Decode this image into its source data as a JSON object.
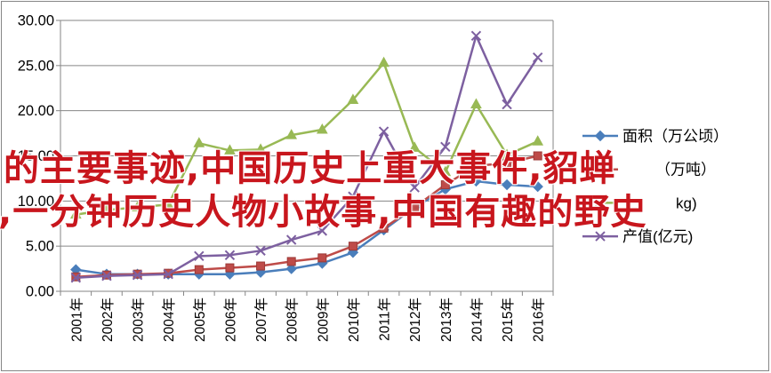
{
  "chart_data": {
    "type": "line",
    "categories": [
      "2001年",
      "2002年",
      "2003年",
      "2004年",
      "2005年",
      "2006年",
      "2007年",
      "2008年",
      "2009年",
      "2010年",
      "2011年",
      "2012年",
      "2013年",
      "2014年",
      "2015年",
      "2016年"
    ],
    "ylim": [
      0,
      30
    ],
    "y_tick_labels": [
      "0.00",
      "5.00",
      "10.00",
      "15.00",
      "20.00",
      "25.00",
      "30.00"
    ],
    "grid": true,
    "legend_position": "right",
    "series": [
      {
        "name": "面积（万公顷）",
        "color": "#4a7ebb",
        "marker": "diamond",
        "values": [
          2.4,
          1.9,
          1.9,
          1.9,
          1.9,
          1.9,
          2.1,
          2.5,
          3.1,
          4.3,
          6.8,
          9.3,
          11.3,
          12.2,
          11.8,
          11.6
        ]
      },
      {
        "name": "（万吨）",
        "color": "#be4b48",
        "marker": "square",
        "values": [
          1.6,
          1.8,
          1.9,
          2.0,
          2.4,
          2.6,
          2.8,
          3.3,
          3.7,
          5.0,
          7.0,
          9.3,
          11.8,
          13.9,
          14.2,
          15.0
        ]
      },
      {
        "name": "kg)",
        "color": "#98b954",
        "marker": "triangle",
        "values": [
          8.5,
          9.0,
          9.3,
          9.6,
          16.4,
          15.6,
          15.7,
          17.3,
          17.9,
          21.2,
          25.3,
          15.9,
          13.2,
          20.7,
          15.1,
          16.6
        ]
      },
      {
        "name": "产值(亿元)",
        "color": "#7d60a0",
        "marker": "x",
        "values": [
          1.5,
          1.7,
          1.8,
          1.9,
          3.9,
          4.0,
          4.5,
          5.7,
          6.7,
          10.5,
          17.7,
          11.5,
          16.0,
          28.3,
          20.7,
          25.9
        ]
      }
    ]
  },
  "overlay_text": {
    "line1": "的主要事迹,中国历史上重大事件,貂蝉",
    "line2": ",一分钟历史人物小故事,中国有趣的野史",
    "color": "#c8161d"
  }
}
